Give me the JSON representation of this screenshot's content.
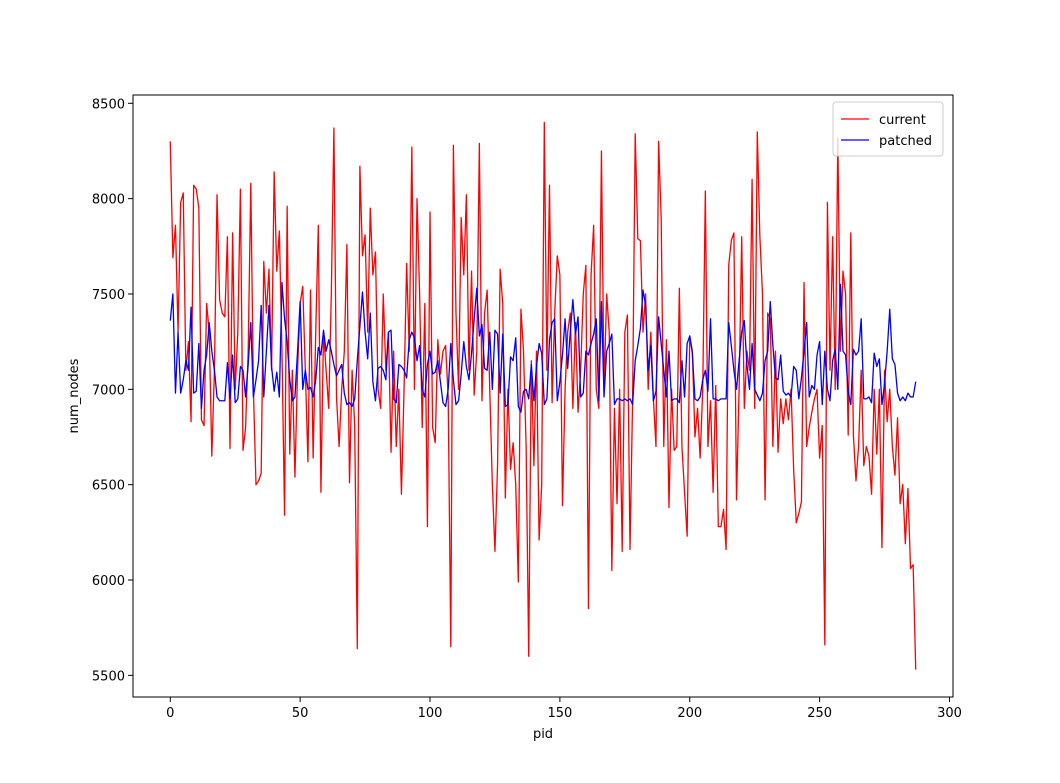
{
  "chart_data": {
    "type": "line",
    "xlabel": "pid",
    "ylabel": "num_nodes",
    "x": [
      0,
      1,
      2,
      3,
      4,
      5,
      6,
      7,
      8,
      9,
      10,
      11,
      12,
      13,
      14,
      15,
      16,
      17,
      18,
      19,
      20,
      21,
      22,
      23,
      24,
      25,
      26,
      27,
      28,
      29,
      30,
      31,
      32,
      33,
      34,
      35,
      36,
      37,
      38,
      39,
      40,
      41,
      42,
      43,
      44,
      45,
      46,
      47,
      48,
      49,
      50,
      51,
      52,
      53,
      54,
      55,
      56,
      57,
      58,
      59,
      60,
      61,
      62,
      63,
      64,
      65,
      66,
      67,
      68,
      69,
      70,
      71,
      72,
      73,
      74,
      75,
      76,
      77,
      78,
      79,
      80,
      81,
      82,
      83,
      84,
      85,
      86,
      87,
      88,
      89,
      90,
      91,
      92,
      93,
      94,
      95,
      96,
      97,
      98,
      99,
      100,
      101,
      102,
      103,
      104,
      105,
      106,
      107,
      108,
      109,
      110,
      111,
      112,
      113,
      114,
      115,
      116,
      117,
      118,
      119,
      120,
      121,
      122,
      123,
      124,
      125,
      126,
      127,
      128,
      129,
      130,
      131,
      132,
      133,
      134,
      135,
      136,
      137,
      138,
      139,
      140,
      141,
      142,
      143,
      144,
      145,
      146,
      147,
      148,
      149,
      150,
      151,
      152,
      153,
      154,
      155,
      156,
      157,
      158,
      159,
      160,
      161,
      162,
      163,
      164,
      165,
      166,
      167,
      168,
      169,
      170,
      171,
      172,
      173,
      174,
      175,
      176,
      177,
      178,
      179,
      180,
      181,
      182,
      183,
      184,
      185,
      186,
      187,
      188,
      189,
      190,
      191,
      192,
      193,
      194,
      195,
      196,
      197,
      198,
      199,
      200,
      201,
      202,
      203,
      204,
      205,
      206,
      207,
      208,
      209,
      210,
      211,
      212,
      213,
      214,
      215,
      216,
      217,
      218,
      219,
      220,
      221,
      222,
      223,
      224,
      225,
      226,
      227,
      228,
      229,
      230,
      231,
      232,
      233,
      234,
      235,
      236,
      237,
      238,
      239,
      240,
      241,
      242,
      243,
      244,
      245,
      246,
      247,
      248,
      249,
      250,
      251,
      252,
      253,
      254,
      255,
      256,
      257,
      258,
      259,
      260,
      261,
      262,
      263,
      264,
      265,
      266,
      267,
      268,
      269,
      270,
      271,
      272,
      273,
      274,
      275,
      276,
      277,
      278,
      279,
      280,
      281,
      282,
      283,
      284,
      285,
      286,
      287
    ],
    "series": [
      {
        "name": "current",
        "color": "#ff0000",
        "values": [
          8300,
          7690,
          7860,
          7300,
          7980,
          8030,
          7100,
          7250,
          6830,
          8070,
          8050,
          7950,
          6840,
          6810,
          7450,
          7300,
          6650,
          7100,
          8020,
          7470,
          7400,
          7380,
          7800,
          6690,
          7820,
          7000,
          7300,
          8050,
          6680,
          6800,
          7200,
          8080,
          7000,
          6500,
          6520,
          6560,
          7670,
          7400,
          7630,
          7100,
          8140,
          7620,
          7830,
          7200,
          6340,
          7960,
          6660,
          7100,
          6540,
          7100,
          7450,
          7540,
          7100,
          6620,
          7520,
          6640,
          7300,
          7860,
          6460,
          7300,
          7100,
          6900,
          7500,
          8370,
          6960,
          6700,
          7000,
          7200,
          7760,
          6510,
          7100,
          6810,
          5640,
          8170,
          7700,
          7810,
          7300,
          7950,
          7600,
          7720,
          7000,
          6900,
          7500,
          7100,
          7300,
          6670,
          7200,
          6700,
          7000,
          6450,
          7000,
          7660,
          7200,
          8270,
          7000,
          8000,
          7500,
          6800,
          7450,
          6280,
          7930,
          6800,
          6720,
          7260,
          7080,
          7200,
          7230,
          6960,
          5650,
          8280,
          7400,
          7000,
          7900,
          7600,
          8020,
          7100,
          7620,
          6970,
          7200,
          8290,
          6940,
          7400,
          7520,
          7000,
          6500,
          6150,
          6600,
          7630,
          7450,
          6430,
          7000,
          6580,
          6720,
          6500,
          5990,
          7420,
          7200,
          6700,
          5600,
          7150,
          6600,
          7200,
          6210,
          6500,
          8400,
          7100,
          8070,
          6930,
          7400,
          7700,
          7600,
          6390,
          7000,
          7300,
          7400,
          6900,
          7350,
          6880,
          7100,
          7500,
          7650,
          5850,
          7600,
          7860,
          7000,
          6900,
          8250,
          7000,
          7500,
          7300,
          6050,
          6900,
          6400,
          7000,
          6150,
          7300,
          7390,
          6160,
          6950,
          8340,
          7790,
          7780,
          7300,
          7500,
          7000,
          7300,
          6950,
          6700,
          8300,
          7900,
          6700,
          7260,
          6380,
          7000,
          6680,
          6700,
          7530,
          6700,
          6460,
          6230,
          7280,
          7200,
          6750,
          6900,
          6640,
          7000,
          8040,
          6700,
          6940,
          6460,
          7020,
          6280,
          6280,
          6370,
          6160,
          7650,
          7780,
          7820,
          6420,
          7000,
          7800,
          6900,
          7200,
          7100,
          8100,
          6900,
          8350,
          7800,
          7500,
          6420,
          7400,
          7370,
          6700,
          7200,
          6670,
          6950,
          6820,
          6950,
          6840,
          7000,
          6580,
          6300,
          6350,
          6410,
          7560,
          6700,
          6800,
          6880,
          6950,
          7000,
          6640,
          6810,
          5660,
          7980,
          7100,
          7800,
          7000,
          8320,
          7200,
          7620,
          7500,
          6760,
          7820,
          6760,
          6520,
          6700,
          7100,
          6600,
          6700,
          6650,
          6450,
          7000,
          6660,
          7000,
          6170,
          7100,
          6830,
          7000,
          6700,
          6550,
          6850,
          6400,
          6500,
          6190,
          6480,
          6060,
          6080,
          5530
        ]
      },
      {
        "name": "patched",
        "color": "#0000ff",
        "values": [
          7360,
          7500,
          6980,
          7300,
          6980,
          7050,
          7150,
          7100,
          7430,
          6980,
          6990,
          7240,
          6900,
          7100,
          7180,
          7350,
          7200,
          7100,
          6960,
          6940,
          6940,
          6940,
          7140,
          6950,
          7180,
          6930,
          6950,
          7120,
          7100,
          6960,
          7130,
          7350,
          6960,
          7050,
          7150,
          7440,
          6960,
          7200,
          7440,
          7120,
          6990,
          7090,
          6960,
          7560,
          7370,
          7250,
          7050,
          6940,
          6960,
          7200,
          7460,
          7000,
          7100,
          7000,
          7010,
          6960,
          7050,
          7220,
          7180,
          7310,
          7200,
          7260,
          7200,
          7130,
          7070,
          7100,
          7130,
          6980,
          6920,
          6930,
          6910,
          6950,
          7150,
          7330,
          7510,
          7300,
          7160,
          7400,
          7040,
          6940,
          7110,
          7120,
          7100,
          7050,
          7300,
          7310,
          6950,
          6930,
          7130,
          7120,
          7100,
          7060,
          7260,
          7300,
          7270,
          7150,
          7230,
          7000,
          6960,
          7130,
          7200,
          7080,
          7090,
          7150,
          7040,
          6930,
          6910,
          7000,
          7240,
          7050,
          6920,
          6940,
          7080,
          7250,
          7120,
          7050,
          7190,
          7370,
          7530,
          7280,
          7340,
          7110,
          7100,
          7300,
          7000,
          7310,
          7290,
          6980,
          7290,
          6910,
          6920,
          7170,
          7150,
          7270,
          6910,
          6880,
          6990,
          7000,
          6950,
          7130,
          6940,
          7120,
          7240,
          7190,
          6920,
          6950,
          7260,
          7350,
          7370,
          6940,
          7040,
          7180,
          7370,
          7110,
          7300,
          7470,
          7290,
          7380,
          6960,
          6980,
          7200,
          7180,
          7240,
          7290,
          7370,
          6940,
          7460,
          6960,
          7200,
          7240,
          7290,
          6920,
          6950,
          6950,
          6940,
          6950,
          6940,
          6950,
          6920,
          7150,
          7230,
          7320,
          7520,
          7440,
          7100,
          7230,
          6940,
          6990,
          7380,
          7240,
          7100,
          6960,
          7200,
          6940,
          6950,
          6950,
          6930,
          7150,
          6960,
          7240,
          7280,
          7190,
          6950,
          6940,
          6960,
          7050,
          7100,
          6990,
          7370,
          6950,
          6950,
          6940,
          6950,
          6950,
          6950,
          7350,
          7230,
          7100,
          7000,
          7150,
          7300,
          7360,
          7130,
          7000,
          7240,
          7000,
          6970,
          6940,
          6980,
          7150,
          7200,
          7460,
          7230,
          7060,
          7050,
          7180,
          6990,
          6970,
          6980,
          6960,
          7120,
          7100,
          6950,
          7060,
          7200,
          7350,
          6960,
          7020,
          7000,
          7180,
          7250,
          6920,
          7200,
          7000,
          6940,
          7150,
          7210,
          7000,
          7550,
          7200,
          7180,
          6990,
          6920,
          7210,
          7180,
          7200,
          7370,
          6950,
          6950,
          6960,
          6930,
          7190,
          7120,
          7160,
          6920,
          7030,
          7200,
          7420,
          7160,
          7130,
          6980,
          6940,
          6960,
          6940,
          6980,
          6960,
          6960,
          7040
        ]
      }
    ],
    "xlim": [
      -14.35,
      301.35
    ],
    "xticks": [
      0,
      50,
      100,
      150,
      200,
      250,
      300
    ],
    "ylim": [
      5386.5,
      8543.5
    ],
    "yticks": [
      5500,
      6000,
      6500,
      7000,
      7500,
      8000,
      8500
    ],
    "grid": false,
    "legend": "upper right"
  }
}
